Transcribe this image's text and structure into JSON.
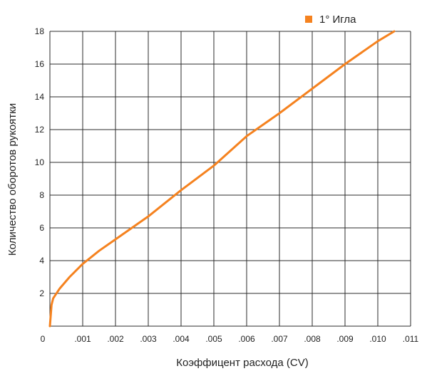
{
  "chart_data": {
    "type": "line",
    "title": "",
    "xlabel": "Коэффицент расхода (CV)",
    "ylabel": "Количество оборотов рукоятки",
    "xlim": [
      0,
      0.011
    ],
    "ylim": [
      0,
      18
    ],
    "x_tick_labels": [
      "0",
      ".001",
      ".002",
      ".003",
      ".004",
      ".005",
      ".006",
      ".007",
      ".008",
      ".009",
      ".010",
      ".011"
    ],
    "y_tick_labels": [
      "2",
      "4",
      "6",
      "8",
      "10",
      "12",
      "14",
      "16",
      "18"
    ],
    "grid": true,
    "legend_position": "top-right",
    "series": [
      {
        "name": "1° Игла",
        "color": "#f5821f",
        "x": [
          0,
          5e-05,
          0.0001,
          0.0003,
          0.0006,
          0.001,
          0.0015,
          0.002,
          0.003,
          0.004,
          0.005,
          0.006,
          0.007,
          0.008,
          0.009,
          0.01,
          0.0105
        ],
        "y": [
          0,
          1.3,
          1.7,
          2.3,
          3.0,
          3.8,
          4.6,
          5.3,
          6.7,
          8.3,
          9.8,
          11.6,
          13.0,
          14.5,
          16.0,
          17.4,
          18.0
        ]
      }
    ]
  }
}
